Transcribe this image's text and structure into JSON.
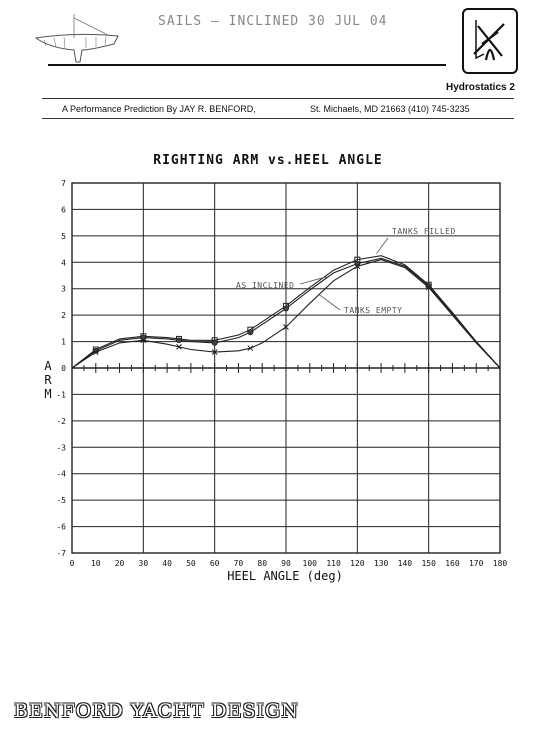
{
  "header": {
    "hand_note": "SAILS  —  INCLINED  30 JUL 04",
    "sheet_title": "Hydrostatics 2",
    "credit_left": "A Performance Prediction By JAY R. BENFORD,",
    "credit_right": "St. Michaels, MD 21663  (410) 745-3235"
  },
  "footer": {
    "brand": "BENFORD YACHT DESIGN"
  },
  "chart_data": {
    "type": "line",
    "title": "RIGHTING ARM vs.HEEL ANGLE",
    "xlabel": "HEEL ANGLE (deg)",
    "ylabel": "ARM",
    "xlim": [
      0,
      180
    ],
    "ylim": [
      -7,
      7
    ],
    "x_ticks": [
      "0",
      "10",
      "20",
      "30",
      "40",
      "50",
      "60",
      "70",
      "80",
      "90",
      "100",
      "110",
      "120",
      "130",
      "140",
      "150",
      "160",
      "170",
      "180"
    ],
    "y_ticks": [
      "7",
      "6",
      "5",
      "4",
      "3",
      "2",
      "1",
      "0",
      "-1",
      "-2",
      "-3",
      "-4",
      "-5",
      "-6",
      "-7"
    ],
    "grid": true,
    "series": [
      {
        "name": "TANKS FILLED",
        "x": [
          0,
          10,
          20,
          30,
          40,
          45,
          50,
          60,
          70,
          75,
          80,
          90,
          100,
          110,
          120,
          130,
          140,
          150,
          160,
          170,
          180
        ],
        "y": [
          0,
          0.7,
          1.1,
          1.2,
          1.15,
          1.1,
          1.05,
          1.05,
          1.25,
          1.45,
          1.75,
          2.35,
          3.05,
          3.7,
          4.1,
          4.25,
          3.9,
          3.15,
          2.1,
          1.0,
          0
        ]
      },
      {
        "name": "AS INCLINED",
        "x": [
          0,
          10,
          20,
          30,
          40,
          45,
          50,
          60,
          70,
          75,
          80,
          90,
          100,
          110,
          120,
          130,
          140,
          150,
          160,
          170,
          180
        ],
        "y": [
          0,
          0.65,
          1.05,
          1.15,
          1.1,
          1.05,
          1.0,
          0.95,
          1.15,
          1.35,
          1.65,
          2.25,
          2.95,
          3.6,
          3.95,
          4.15,
          3.85,
          3.1,
          2.05,
          1.0,
          0
        ]
      },
      {
        "name": "TANKS EMPTY",
        "x": [
          0,
          10,
          20,
          30,
          40,
          45,
          50,
          60,
          70,
          75,
          80,
          90,
          100,
          110,
          120,
          130,
          140,
          150,
          160,
          170,
          180
        ],
        "y": [
          0,
          0.6,
          0.95,
          1.05,
          0.9,
          0.8,
          0.7,
          0.6,
          0.65,
          0.75,
          0.95,
          1.55,
          2.45,
          3.3,
          3.85,
          4.1,
          3.8,
          3.05,
          2.0,
          0.95,
          0
        ]
      }
    ],
    "annotations": [
      "TANKS FILLED",
      "AS INCLINED",
      "TANKS EMPTY"
    ]
  }
}
